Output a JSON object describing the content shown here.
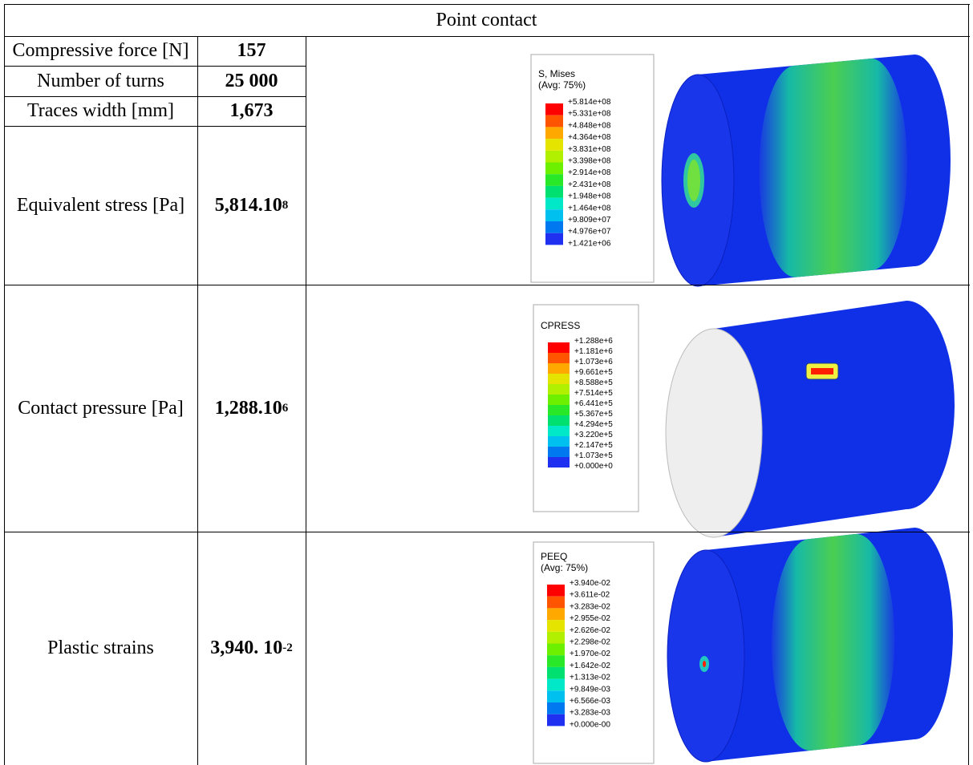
{
  "header": {
    "title": "Point contact"
  },
  "table": {
    "rows": [
      {
        "label": "Compressive force [N]",
        "value": "157"
      },
      {
        "label": "Number of turns",
        "value": "25 000"
      },
      {
        "label": "Traces width [mm]",
        "value": "1,673"
      },
      {
        "label": "Equivalent stress [Pa]",
        "value": "5,814.10",
        "exponent": "8"
      },
      {
        "label": "Contact pressure [Pa]",
        "value": "1,288.10",
        "exponent": "6"
      },
      {
        "label": "Plastic strains",
        "value": "3,940. 10",
        "exponent": "-2"
      }
    ]
  },
  "figures": [
    {
      "legend_title": [
        "S, Mises",
        "(Avg: 75%)"
      ],
      "legend_values": [
        "+5.814e+08",
        "+5.331e+08",
        "+4.848e+08",
        "+4.364e+08",
        "+3.831e+08",
        "+3.398e+08",
        "+2.914e+08",
        "+2.431e+08",
        "+1.948e+08",
        "+1.464e+08",
        "+9.809e+07",
        "+4.976e+07",
        "+1.421e+06"
      ]
    },
    {
      "legend_title": [
        "CPRESS"
      ],
      "legend_values": [
        "+1.288e+6",
        "+1.181e+6",
        "+1.073e+6",
        "+9.661e+5",
        "+8.588e+5",
        "+7.514e+5",
        "+6.441e+5",
        "+5.367e+5",
        "+4.294e+5",
        "+3.220e+5",
        "+2.147e+5",
        "+1.073e+5",
        "+0.000e+0"
      ]
    },
    {
      "legend_title": [
        "PEEQ",
        "(Avg: 75%)"
      ],
      "legend_values": [
        "+3.940e-02",
        "+3.611e-02",
        "+3.283e-02",
        "+2.955e-02",
        "+2.626e-02",
        "+2.298e-02",
        "+1.970e-02",
        "+1.642e-02",
        "+1.313e-02",
        "+9.849e-03",
        "+6.566e-03",
        "+3.283e-03",
        "+0.000e-00"
      ]
    }
  ]
}
